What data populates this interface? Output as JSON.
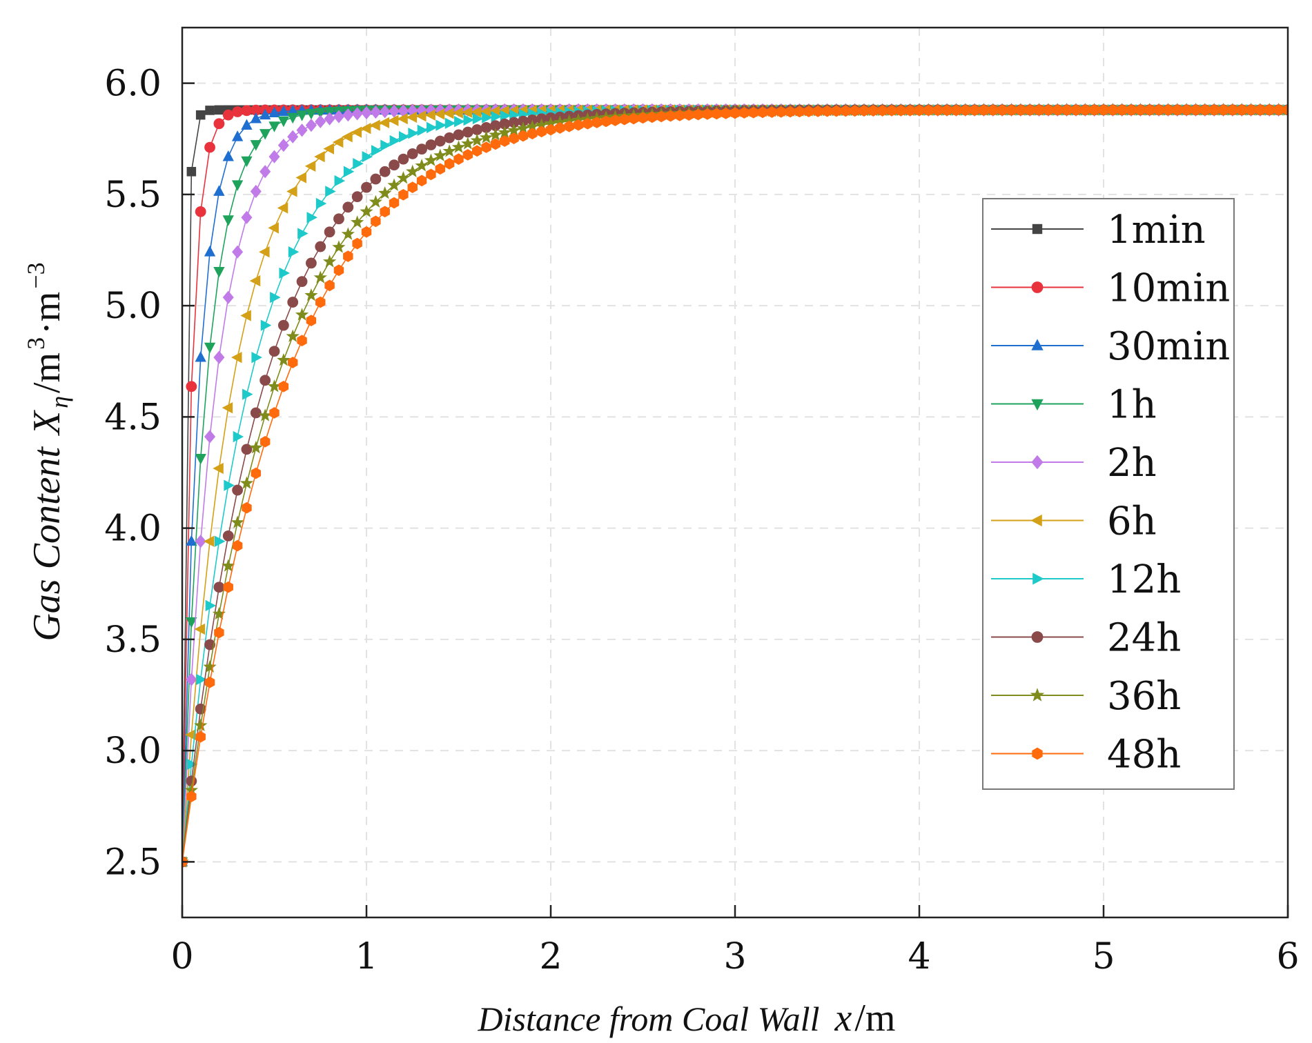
{
  "chart_data": {
    "type": "line",
    "title": "",
    "xlabel": {
      "text": "Distance from Coal Wall",
      "var": "x",
      "unit": "/m"
    },
    "ylabel": {
      "text": "Gas Content",
      "var": "X",
      "sub": "η",
      "unit_prefix": "/m",
      "sup1": "3",
      "mid": "·m",
      "sup2": "−3"
    },
    "xlim": [
      0,
      6
    ],
    "ylim": [
      2.25,
      6.25
    ],
    "xticks": [
      0,
      1,
      2,
      3,
      4,
      5,
      6
    ],
    "xtick_labels": [
      "0",
      "1",
      "2",
      "3",
      "4",
      "5",
      "6"
    ],
    "yticks": [
      2.5,
      3.0,
      3.5,
      4.0,
      4.5,
      5.0,
      5.5,
      6.0
    ],
    "ytick_labels": [
      "2.5",
      "3.0",
      "3.5",
      "4.0",
      "4.5",
      "5.0",
      "5.5",
      "6.0"
    ],
    "grid": true,
    "legend_position": "right",
    "model": {
      "description": "each curve follows X = Xi - (Xi - X0)·exp(-x/L)",
      "initial_content": 5.88,
      "wall_content": 2.5,
      "sample_step": 0.05
    },
    "series": [
      {
        "name": "1min",
        "decay_length_m": 0.02,
        "marker": "square",
        "color": "#444444"
      },
      {
        "name": "10min",
        "decay_length_m": 0.05,
        "marker": "circle",
        "color": "#e8323c"
      },
      {
        "name": "30min",
        "decay_length_m": 0.09,
        "marker": "triangle-up",
        "color": "#1f6fd1"
      },
      {
        "name": "1h",
        "decay_length_m": 0.13,
        "marker": "triangle-down",
        "color": "#1fa35c"
      },
      {
        "name": "2h",
        "decay_length_m": 0.18,
        "marker": "diamond",
        "color": "#c07be8"
      },
      {
        "name": "6h",
        "decay_length_m": 0.27,
        "marker": "triangle-left",
        "color": "#d4a017"
      },
      {
        "name": "12h",
        "decay_length_m": 0.36,
        "marker": "triangle-right",
        "color": "#1ec9c9"
      },
      {
        "name": "24h",
        "decay_length_m": 0.44,
        "marker": "circle",
        "color": "#8a4a4a"
      },
      {
        "name": "36h",
        "decay_length_m": 0.5,
        "marker": "star",
        "color": "#7f8c1c"
      },
      {
        "name": "48h",
        "decay_length_m": 0.55,
        "marker": "hexagon",
        "color": "#ff6a0d"
      }
    ]
  }
}
